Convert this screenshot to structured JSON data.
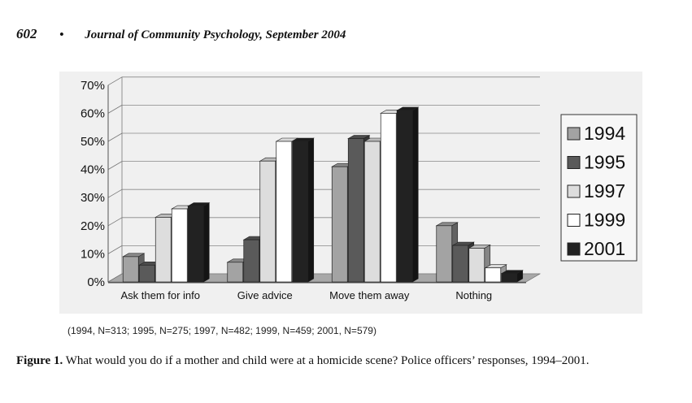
{
  "header": {
    "page_number": "602",
    "bullet": "•",
    "journal": "Journal of Community Psychology, September 2004"
  },
  "chart_data": {
    "type": "bar",
    "three_d": true,
    "categories": [
      "Ask them for info",
      "Give advice",
      "Move them away",
      "Nothing"
    ],
    "series": [
      {
        "name": "1994",
        "color": "#a3a3a3",
        "values": [
          9,
          7,
          41,
          20
        ]
      },
      {
        "name": "1995",
        "color": "#5a5a5a",
        "values": [
          6,
          15,
          51,
          13
        ]
      },
      {
        "name": "1997",
        "color": "#dddddd",
        "values": [
          23,
          43,
          50,
          12
        ]
      },
      {
        "name": "1999",
        "color": "#ffffff",
        "values": [
          26,
          50,
          60,
          5
        ]
      },
      {
        "name": "2001",
        "color": "#222222",
        "values": [
          27,
          50,
          61,
          3
        ]
      }
    ],
    "yticks": [
      "0%",
      "10%",
      "20%",
      "30%",
      "40%",
      "50%",
      "60%",
      "70%"
    ],
    "ylim": [
      0,
      70
    ],
    "grid": true,
    "legend": "right",
    "title": "",
    "xlabel": "",
    "ylabel": ""
  },
  "note": "(1994, N=313; 1995, N=275; 1997, N=482; 1999, N=459; 2001, N=579)",
  "caption": {
    "label": "Figure 1.",
    "text": " What would you do if a mother and child were at a homicide scene? Police officers’ responses, 1994–2001."
  }
}
